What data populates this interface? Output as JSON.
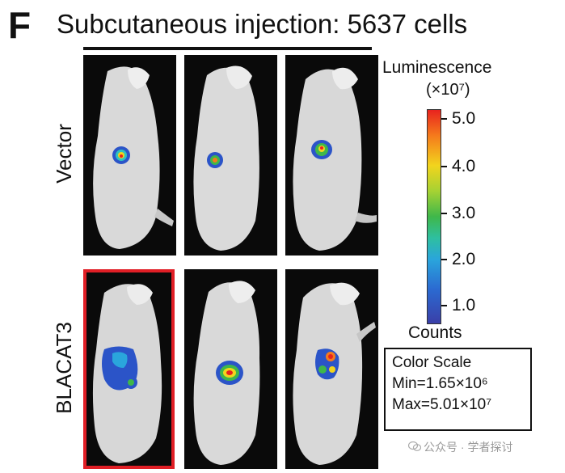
{
  "figure": {
    "panel_letter": "F",
    "title": "Subcutaneous injection: 5637 cells",
    "row_labels": [
      "Vector",
      "BLACAT3"
    ]
  },
  "colorbar": {
    "title": "Luminescence",
    "unit": "(×10⁷)",
    "ticks": [
      "5.0",
      "4.0",
      "3.0",
      "2.0",
      "1.0"
    ],
    "bottom_label": "Counts",
    "colors": [
      "#e8231e",
      "#f57a1c",
      "#f2d41d",
      "#a6d233",
      "#3fb74a",
      "#2aa5dc",
      "#3a3fa8"
    ]
  },
  "color_scale": {
    "title": "Color Scale",
    "min": "Min=1.65×10⁶",
    "max": "Max=5.01×10⁷"
  },
  "highlight_color": "#e01e25",
  "watermark": "公众号 · 学者探讨"
}
